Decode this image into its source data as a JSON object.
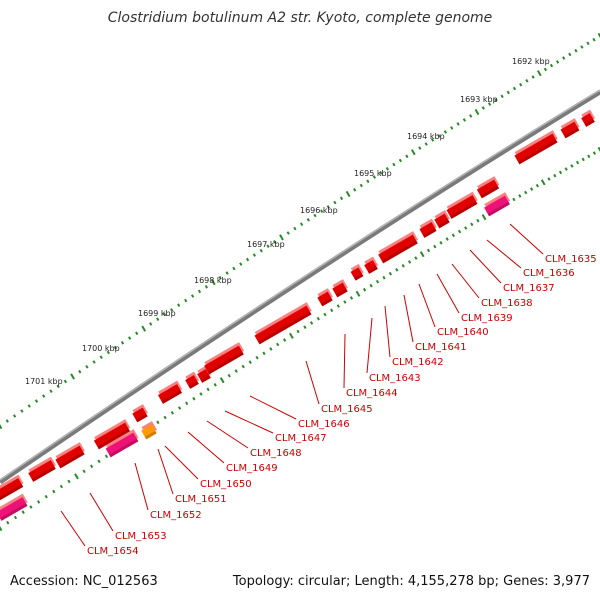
{
  "title": "Clostridium botulinum A2 str. Kyoto, complete genome",
  "footer": {
    "accession": "Accession: NC_012563",
    "stats": "Topology: circular; Length: 4,155,278 bp; Genes: 3,977"
  },
  "colors": {
    "backbone": "#7a7a7a",
    "gene_forward": "#e00000",
    "gene_reverse": "#ee1177",
    "gene_rna": "#ff9900",
    "ticks": "#2a8a2a",
    "label": "#cc0000"
  },
  "scale_labels": [
    "1692 kbp",
    "1693 kbp",
    "1694 kbp",
    "1695 kbp",
    "1696 kbp",
    "1697 kbp",
    "1698 kbp",
    "1699 kbp",
    "1700 kbp",
    "1701 kbp"
  ],
  "gene_labels": [
    "CLM_1635",
    "CLM_1636",
    "CLM_1637",
    "CLM_1638",
    "CLM_1639",
    "CLM_1640",
    "CLM_1641",
    "CLM_1642",
    "CLM_1643",
    "CLM_1644",
    "CLM_1645",
    "CLM_1646",
    "CLM_1647",
    "CLM_1648",
    "CLM_1649",
    "CLM_1650",
    "CLM_1651",
    "CLM_1652",
    "CLM_1653",
    "CLM_1654"
  ]
}
